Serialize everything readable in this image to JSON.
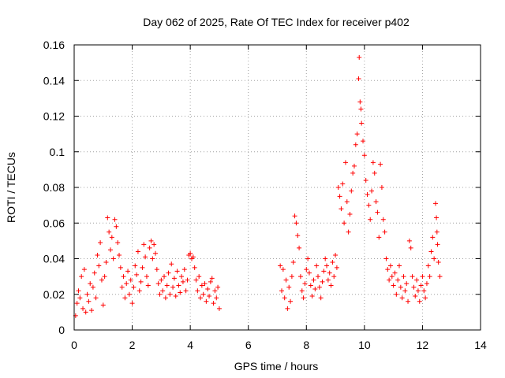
{
  "chart_data": {
    "type": "scatter",
    "title": "Day 062 of 2025, Rate Of TEC Index for receiver p402",
    "xlabel": "GPS time / hours",
    "ylabel": "ROTI / TECUs",
    "xlim": [
      0,
      14
    ],
    "ylim": [
      0,
      0.16
    ],
    "x_ticks": [
      "0",
      "2",
      "4",
      "6",
      "8",
      "10",
      "12",
      "14"
    ],
    "y_ticks": [
      "0",
      "0.02",
      "0.04",
      "0.06",
      "0.08",
      "0.1",
      "0.12",
      "0.14",
      "0.16"
    ],
    "grid": true,
    "marker": "+",
    "marker_color": "#ff0000",
    "series": [
      {
        "name": "ROTI",
        "points": [
          [
            0.05,
            0.008
          ],
          [
            0.1,
            0.015
          ],
          [
            0.15,
            0.022
          ],
          [
            0.2,
            0.018
          ],
          [
            0.25,
            0.03
          ],
          [
            0.3,
            0.012
          ],
          [
            0.35,
            0.034
          ],
          [
            0.4,
            0.01
          ],
          [
            0.45,
            0.02
          ],
          [
            0.5,
            0.016
          ],
          [
            0.55,
            0.026
          ],
          [
            0.6,
            0.011
          ],
          [
            0.65,
            0.024
          ],
          [
            0.7,
            0.032
          ],
          [
            0.75,
            0.018
          ],
          [
            0.8,
            0.042
          ],
          [
            0.85,
            0.036
          ],
          [
            0.9,
            0.049
          ],
          [
            0.95,
            0.028
          ],
          [
            1.0,
            0.014
          ],
          [
            1.05,
            0.03
          ],
          [
            1.1,
            0.038
          ],
          [
            1.15,
            0.063
          ],
          [
            1.2,
            0.055
          ],
          [
            1.25,
            0.045
          ],
          [
            1.3,
            0.052
          ],
          [
            1.35,
            0.04
          ],
          [
            1.4,
            0.062
          ],
          [
            1.45,
            0.058
          ],
          [
            1.5,
            0.049
          ],
          [
            1.55,
            0.042
          ],
          [
            1.6,
            0.035
          ],
          [
            1.65,
            0.024
          ],
          [
            1.7,
            0.03
          ],
          [
            1.75,
            0.018
          ],
          [
            1.8,
            0.026
          ],
          [
            1.85,
            0.033
          ],
          [
            1.9,
            0.02
          ],
          [
            1.95,
            0.028
          ],
          [
            2.0,
            0.015
          ],
          [
            2.05,
            0.024
          ],
          [
            2.1,
            0.036
          ],
          [
            2.15,
            0.031
          ],
          [
            2.2,
            0.044
          ],
          [
            2.25,
            0.022
          ],
          [
            2.3,
            0.027
          ],
          [
            2.35,
            0.035
          ],
          [
            2.4,
            0.048
          ],
          [
            2.45,
            0.041
          ],
          [
            2.5,
            0.03
          ],
          [
            2.55,
            0.025
          ],
          [
            2.6,
            0.046
          ],
          [
            2.65,
            0.05
          ],
          [
            2.7,
            0.04
          ],
          [
            2.75,
            0.048
          ],
          [
            2.8,
            0.043
          ],
          [
            2.85,
            0.034
          ],
          [
            2.9,
            0.026
          ],
          [
            2.95,
            0.02
          ],
          [
            3.0,
            0.028
          ],
          [
            3.05,
            0.022
          ],
          [
            3.1,
            0.03
          ],
          [
            3.15,
            0.018
          ],
          [
            3.2,
            0.025
          ],
          [
            3.25,
            0.032
          ],
          [
            3.3,
            0.02
          ],
          [
            3.35,
            0.037
          ],
          [
            3.4,
            0.024
          ],
          [
            3.45,
            0.029
          ],
          [
            3.5,
            0.019
          ],
          [
            3.55,
            0.033
          ],
          [
            3.6,
            0.025
          ],
          [
            3.65,
            0.021
          ],
          [
            3.7,
            0.03
          ],
          [
            3.75,
            0.027
          ],
          [
            3.8,
            0.034
          ],
          [
            3.85,
            0.022
          ],
          [
            3.9,
            0.028
          ],
          [
            3.95,
            0.042
          ],
          [
            4.0,
            0.043
          ],
          [
            4.05,
            0.04
          ],
          [
            4.1,
            0.041
          ],
          [
            4.15,
            0.035
          ],
          [
            4.2,
            0.028
          ],
          [
            4.25,
            0.022
          ],
          [
            4.3,
            0.03
          ],
          [
            4.35,
            0.018
          ],
          [
            4.4,
            0.025
          ],
          [
            4.45,
            0.02
          ],
          [
            4.5,
            0.026
          ],
          [
            4.55,
            0.016
          ],
          [
            4.6,
            0.023
          ],
          [
            4.65,
            0.019
          ],
          [
            4.7,
            0.027
          ],
          [
            4.75,
            0.029
          ],
          [
            4.8,
            0.015
          ],
          [
            4.85,
            0.022
          ],
          [
            4.9,
            0.018
          ],
          [
            4.95,
            0.024
          ],
          [
            5.0,
            0.012
          ],
          [
            7.1,
            0.036
          ],
          [
            7.15,
            0.022
          ],
          [
            7.2,
            0.034
          ],
          [
            7.25,
            0.018
          ],
          [
            7.3,
            0.028
          ],
          [
            7.35,
            0.012
          ],
          [
            7.4,
            0.024
          ],
          [
            7.45,
            0.016
          ],
          [
            7.5,
            0.03
          ],
          [
            7.55,
            0.038
          ],
          [
            7.6,
            0.064
          ],
          [
            7.65,
            0.06
          ],
          [
            7.7,
            0.053
          ],
          [
            7.75,
            0.046
          ],
          [
            7.8,
            0.03
          ],
          [
            7.85,
            0.022
          ],
          [
            7.9,
            0.018
          ],
          [
            7.95,
            0.026
          ],
          [
            8.0,
            0.034
          ],
          [
            8.05,
            0.04
          ],
          [
            8.1,
            0.032
          ],
          [
            8.15,
            0.025
          ],
          [
            8.2,
            0.019
          ],
          [
            8.25,
            0.028
          ],
          [
            8.3,
            0.023
          ],
          [
            8.35,
            0.036
          ],
          [
            8.4,
            0.03
          ],
          [
            8.45,
            0.024
          ],
          [
            8.5,
            0.018
          ],
          [
            8.55,
            0.027
          ],
          [
            8.6,
            0.033
          ],
          [
            8.65,
            0.04
          ],
          [
            8.7,
            0.036
          ],
          [
            8.75,
            0.028
          ],
          [
            8.8,
            0.032
          ],
          [
            8.85,
            0.025
          ],
          [
            8.9,
            0.038
          ],
          [
            8.95,
            0.03
          ],
          [
            9.0,
            0.042
          ],
          [
            9.05,
            0.035
          ],
          [
            9.1,
            0.08
          ],
          [
            9.15,
            0.075
          ],
          [
            9.2,
            0.068
          ],
          [
            9.25,
            0.082
          ],
          [
            9.3,
            0.06
          ],
          [
            9.35,
            0.094
          ],
          [
            9.4,
            0.072
          ],
          [
            9.45,
            0.055
          ],
          [
            9.5,
            0.065
          ],
          [
            9.55,
            0.078
          ],
          [
            9.6,
            0.088
          ],
          [
            9.65,
            0.092
          ],
          [
            9.7,
            0.104
          ],
          [
            9.75,
            0.11
          ],
          [
            9.8,
            0.141
          ],
          [
            9.82,
            0.153
          ],
          [
            9.85,
            0.128
          ],
          [
            9.88,
            0.124
          ],
          [
            9.9,
            0.116
          ],
          [
            9.95,
            0.106
          ],
          [
            10.0,
            0.098
          ],
          [
            10.05,
            0.084
          ],
          [
            10.1,
            0.076
          ],
          [
            10.15,
            0.07
          ],
          [
            10.2,
            0.062
          ],
          [
            10.25,
            0.078
          ],
          [
            10.3,
            0.094
          ],
          [
            10.35,
            0.088
          ],
          [
            10.4,
            0.072
          ],
          [
            10.45,
            0.066
          ],
          [
            10.5,
            0.052
          ],
          [
            10.55,
            0.093
          ],
          [
            10.6,
            0.08
          ],
          [
            10.65,
            0.062
          ],
          [
            10.7,
            0.055
          ],
          [
            10.75,
            0.04
          ],
          [
            10.8,
            0.034
          ],
          [
            10.85,
            0.028
          ],
          [
            10.9,
            0.036
          ],
          [
            10.95,
            0.03
          ],
          [
            11.0,
            0.025
          ],
          [
            11.05,
            0.032
          ],
          [
            11.1,
            0.02
          ],
          [
            11.15,
            0.028
          ],
          [
            11.2,
            0.036
          ],
          [
            11.25,
            0.024
          ],
          [
            11.3,
            0.018
          ],
          [
            11.35,
            0.03
          ],
          [
            11.4,
            0.022
          ],
          [
            11.45,
            0.026
          ],
          [
            11.5,
            0.016
          ],
          [
            11.55,
            0.05
          ],
          [
            11.6,
            0.046
          ],
          [
            11.65,
            0.03
          ],
          [
            11.7,
            0.024
          ],
          [
            11.75,
            0.019
          ],
          [
            11.8,
            0.028
          ],
          [
            11.85,
            0.022
          ],
          [
            11.9,
            0.016
          ],
          [
            11.95,
            0.025
          ],
          [
            12.0,
            0.03
          ],
          [
            12.05,
            0.022
          ],
          [
            12.1,
            0.018
          ],
          [
            12.15,
            0.026
          ],
          [
            12.2,
            0.036
          ],
          [
            12.25,
            0.03
          ],
          [
            12.3,
            0.044
          ],
          [
            12.35,
            0.052
          ],
          [
            12.4,
            0.04
          ],
          [
            12.45,
            0.071
          ],
          [
            12.48,
            0.063
          ],
          [
            12.5,
            0.055
          ],
          [
            12.52,
            0.048
          ],
          [
            12.55,
            0.038
          ],
          [
            12.6,
            0.03
          ]
        ]
      }
    ]
  }
}
